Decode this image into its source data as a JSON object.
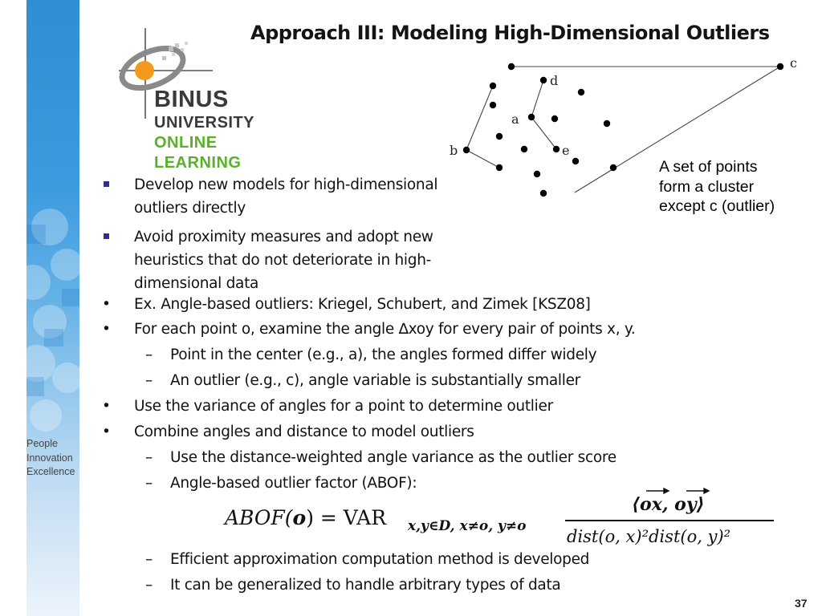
{
  "title": "Approach III: Modeling High-Dimensional Outliers",
  "logo": {
    "line1": "BINUS",
    "line2": "UNIVERSITY",
    "line3": "ONLINE",
    "line4": "LEARNING",
    "colors": {
      "orange": "#f39a1c",
      "dark": "#3a3a3a",
      "green": "#5ab02a"
    }
  },
  "tagline": [
    "People",
    "Innovation",
    "Excellence"
  ],
  "diagram": {
    "labels": {
      "a": "a",
      "b": "b",
      "c": "c",
      "d": "d",
      "e": "e"
    },
    "caption": [
      "A set of points",
      "form a cluster",
      "except c (outlier)"
    ]
  },
  "bullets_top": [
    [
      "Develop new models for high-dimensional",
      "outliers directly"
    ],
    [
      "Avoid proximity measures and adopt new",
      "heuristics that do not deteriorate in high-",
      "dimensional data"
    ]
  ],
  "items": [
    {
      "marker": "•",
      "text": "Ex. Angle-based outliers: Kriegel, Schubert, and Zimek [KSZ08]"
    },
    {
      "marker": "•",
      "text": "For each point o, examine the angle ∆xoy for every pair of points x, y."
    },
    {
      "marker": "–",
      "text": "Point in the center (e.g., a), the angles formed differ widely"
    },
    {
      "marker": "–",
      "text": "An outlier (e.g., c), angle variable is substantially smaller"
    },
    {
      "marker": "•",
      "text": "Use the variance of angles for a point to determine outlier"
    },
    {
      "marker": "•",
      "text": "Combine angles and distance to model outliers"
    },
    {
      "marker": "–",
      "text": "Use the distance-weighted angle variance as the outlier score"
    },
    {
      "marker": "–",
      "text": "Angle-based outlier factor (ABOF):"
    },
    {
      "marker": "–",
      "text": "Efficient approximation computation method is developed"
    },
    {
      "marker": "–",
      "text": "It can be generalized to handle arbitrary types of data"
    }
  ],
  "formula": {
    "lhs": "ABOF(",
    "o": "o",
    "eq": ") = VAR",
    "sub": "x,y∈D, x≠o, y≠o",
    "num": "⟨ox, oy⟩",
    "den": "dist(o, x)²dist(o, y)²"
  },
  "page_number": "37"
}
